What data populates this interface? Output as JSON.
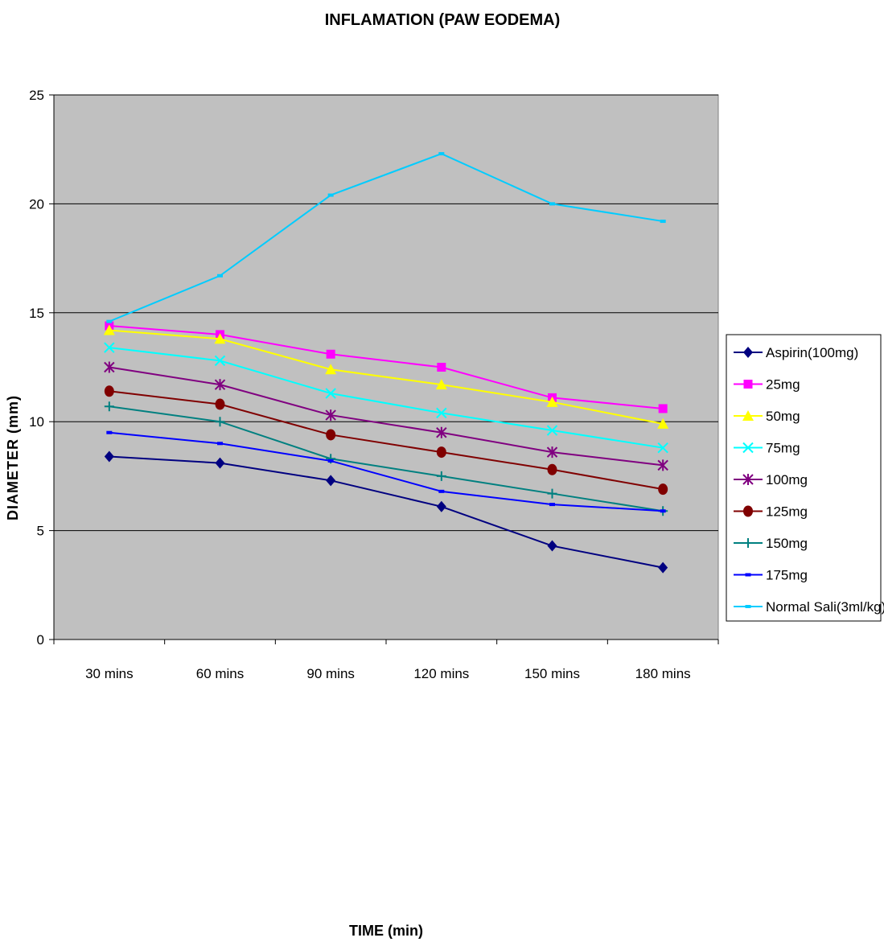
{
  "chart_data": {
    "type": "line",
    "title": "INFLAMATION (PAW EODEMA)",
    "xlabel": "TIME (min)",
    "ylabel": "DIAMETER (mm)",
    "categories": [
      "30 mins",
      "60 mins",
      "90 mins",
      "120 mins",
      "150 mins",
      "180 mins"
    ],
    "ylim": [
      0,
      25
    ],
    "yticks": [
      0,
      5,
      10,
      15,
      20,
      25
    ],
    "grid": true,
    "legend_position": "right",
    "plot_background": "#c0c0c0",
    "series": [
      {
        "name": "Aspirin(100mg)",
        "color": "#000080",
        "marker": "diamond",
        "values": [
          8.4,
          8.1,
          7.3,
          6.1,
          4.3,
          3.3
        ]
      },
      {
        "name": "25mg",
        "color": "#ff00ff",
        "marker": "square",
        "values": [
          14.4,
          14.0,
          13.1,
          12.5,
          11.1,
          10.6
        ]
      },
      {
        "name": "50mg",
        "color": "#ffff00",
        "marker": "triangle",
        "values": [
          14.2,
          13.8,
          12.4,
          11.7,
          10.9,
          9.9
        ]
      },
      {
        "name": "75mg",
        "color": "#00ffff",
        "marker": "x",
        "values": [
          13.4,
          12.8,
          11.3,
          10.4,
          9.6,
          8.8
        ]
      },
      {
        "name": "100mg",
        "color": "#800080",
        "marker": "star",
        "values": [
          12.5,
          11.7,
          10.3,
          9.5,
          8.6,
          8.0
        ]
      },
      {
        "name": "125mg",
        "color": "#800000",
        "marker": "circle",
        "values": [
          11.4,
          10.8,
          9.4,
          8.6,
          7.8,
          6.9
        ]
      },
      {
        "name": "150mg",
        "color": "#008080",
        "marker": "plus",
        "values": [
          10.7,
          10.0,
          8.3,
          7.5,
          6.7,
          5.9
        ]
      },
      {
        "name": "175mg",
        "color": "#0000ff",
        "marker": "dash",
        "values": [
          9.5,
          9.0,
          8.2,
          6.8,
          6.2,
          5.9
        ]
      },
      {
        "name": "Normal Sali(3ml/kg)",
        "color": "#00ccff",
        "marker": "dash",
        "values": [
          14.6,
          16.7,
          20.4,
          22.3,
          20.0,
          19.2
        ]
      }
    ]
  }
}
